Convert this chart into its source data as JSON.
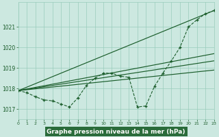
{
  "xlabel": "Graphe pression niveau de la mer (hPa)",
  "xlim": [
    0,
    23
  ],
  "ylim": [
    1016.5,
    1022.2
  ],
  "yticks": [
    1017,
    1018,
    1019,
    1020,
    1021
  ],
  "xticks": [
    0,
    1,
    2,
    3,
    4,
    5,
    6,
    7,
    8,
    9,
    10,
    11,
    12,
    13,
    14,
    15,
    16,
    17,
    18,
    19,
    20,
    21,
    22,
    23
  ],
  "bg_color": "#cce8e0",
  "grid_color": "#99ccbb",
  "line_color": "#1a5c2a",
  "xlabel_bg": "#2a6b3a",
  "xlabel_fg": "#ffffff",
  "main_data": {
    "x": [
      0,
      1,
      2,
      3,
      4,
      5,
      6,
      7,
      8,
      9,
      10,
      11,
      12,
      13,
      14,
      15,
      16,
      17,
      18,
      19,
      20,
      21,
      22,
      23
    ],
    "y": [
      1017.9,
      1017.8,
      1017.6,
      1017.45,
      1017.4,
      1017.25,
      1017.1,
      1017.55,
      1018.15,
      1018.5,
      1018.75,
      1018.75,
      1018.6,
      1018.55,
      1017.1,
      1017.15,
      1018.1,
      1018.75,
      1019.35,
      1020.0,
      1021.0,
      1021.35,
      1021.65,
      1021.8
    ]
  },
  "trend_lines": [
    {
      "x0": 0,
      "y0": 1017.9,
      "x1": 23,
      "y1": 1021.8
    },
    {
      "x0": 0,
      "y0": 1017.9,
      "x1": 23,
      "y1": 1019.7
    },
    {
      "x0": 0,
      "y0": 1017.9,
      "x1": 23,
      "y1": 1019.35
    },
    {
      "x0": 0,
      "y0": 1017.9,
      "x1": 23,
      "y1": 1018.9
    }
  ]
}
